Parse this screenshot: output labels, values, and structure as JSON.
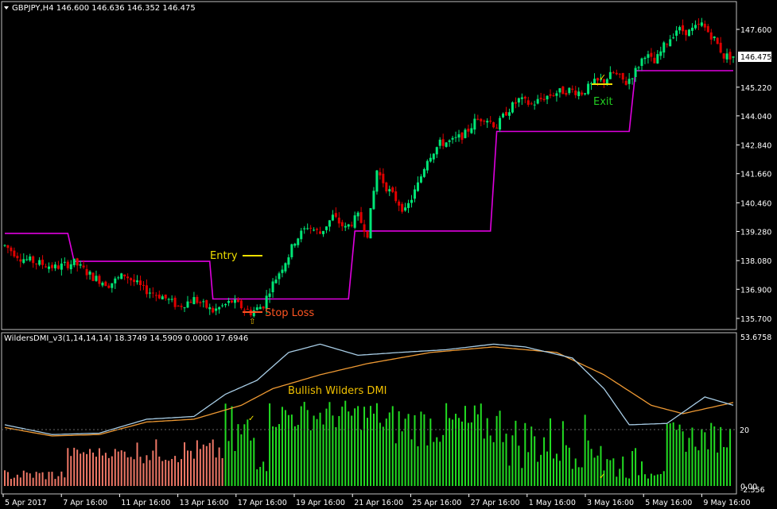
{
  "window": {
    "header_text": "GBPJPY,H4  146.600 146.636 146.352 146.475",
    "price_tag": "146.475"
  },
  "indicator": {
    "header_text": "WildersDMI_v3(1,14,14,14) 18.3749 14.5909 0.0000 17.6946",
    "level_label": "20"
  },
  "annotations": {
    "entry": "Entry",
    "exit": "Exit",
    "stop_loss": "Stop Loss",
    "bullish": "Bullish Wilders DMI"
  },
  "colors": {
    "background": "#000000",
    "grid_border": "#ffffff",
    "bull_candle": "#00e676",
    "bear_candle": "#e00000",
    "trail_line": "#e000e0",
    "hist_bull": "#22dd22",
    "hist_bear": "#ee7766",
    "dmi_plus": "#a8cde6",
    "dmi_minus": "#ee9933",
    "entry_text": "#f0e000",
    "exit_text": "#22cc22",
    "stop_text": "#ff5522",
    "bullish_text": "#f0c000"
  },
  "chart_data": [
    {
      "type": "candlestick",
      "symbol": "GBPJPY",
      "timeframe": "H4",
      "ylim": [
        135.7,
        148.3
      ],
      "y_ticks": [
        "147.600",
        "146.475",
        "145.220",
        "144.040",
        "142.840",
        "141.660",
        "140.460",
        "139.280",
        "138.080",
        "136.900",
        "135.700"
      ],
      "close_path": [
        [
          0,
          138.7
        ],
        [
          5,
          138.2
        ],
        [
          10,
          138.0
        ],
        [
          16,
          137.8
        ],
        [
          22,
          138.0
        ],
        [
          28,
          137.4
        ],
        [
          33,
          137.1
        ],
        [
          38,
          137.5
        ],
        [
          44,
          136.9
        ],
        [
          50,
          136.6
        ],
        [
          55,
          136.2
        ],
        [
          60,
          136.5
        ],
        [
          66,
          136.0
        ],
        [
          72,
          136.4
        ],
        [
          78,
          135.95
        ],
        [
          82,
          136.25
        ],
        [
          84,
          136.9
        ],
        [
          87,
          137.6
        ],
        [
          90,
          138.3
        ],
        [
          92,
          138.9
        ],
        [
          96,
          139.5
        ],
        [
          100,
          139.2
        ],
        [
          104,
          139.9
        ],
        [
          108,
          139.4
        ],
        [
          112,
          139.9
        ],
        [
          115,
          139.2
        ],
        [
          118,
          141.8
        ],
        [
          121,
          141.1
        ],
        [
          124,
          140.6
        ],
        [
          127,
          140.1
        ],
        [
          131,
          141.2
        ],
        [
          134,
          142.3
        ],
        [
          138,
          142.9
        ],
        [
          142,
          143.0
        ],
        [
          146,
          143.3
        ],
        [
          149,
          143.8
        ],
        [
          152,
          144.0
        ],
        [
          156,
          143.6
        ],
        [
          159,
          144.2
        ],
        [
          163,
          144.7
        ],
        [
          167,
          144.5
        ],
        [
          171,
          144.8
        ],
        [
          175,
          145.0
        ],
        [
          179,
          145.1
        ],
        [
          183,
          145.0
        ],
        [
          187,
          145.4
        ],
        [
          190,
          145.5
        ],
        [
          193,
          145.8
        ],
        [
          197,
          145.4
        ],
        [
          200,
          145.9
        ],
        [
          203,
          146.6
        ],
        [
          206,
          146.2
        ],
        [
          209,
          146.9
        ],
        [
          213,
          147.6
        ],
        [
          217,
          147.5
        ],
        [
          221,
          147.8
        ],
        [
          225,
          147.2
        ],
        [
          228,
          146.5
        ]
      ],
      "trailing_stop": [
        [
          0,
          139.2
        ],
        [
          20,
          139.2
        ],
        [
          22,
          138.05
        ],
        [
          65,
          138.05
        ],
        [
          66,
          136.5
        ],
        [
          109,
          136.5
        ],
        [
          111,
          139.3
        ],
        [
          154,
          139.3
        ],
        [
          156,
          143.4
        ],
        [
          198,
          143.4
        ],
        [
          200,
          145.9
        ],
        [
          231,
          145.9
        ]
      ],
      "x_labels": [
        "5 Apr 2017",
        "7 Apr 16:00",
        "11 Apr 16:00",
        "13 Apr 16:00",
        "17 Apr 16:00",
        "19 Apr 16:00",
        "21 Apr 16:00",
        "25 Apr 16:00",
        "27 Apr 16:00",
        "1 May 16:00",
        "3 May 16:00",
        "5 May 16:00",
        "9 May 16:00"
      ]
    },
    {
      "type": "bar",
      "name": "WildersDMI histogram",
      "ylim": [
        0,
        53.6758
      ],
      "y_ticks": [
        "53.6758",
        "20",
        "0.00",
        "-2.556"
      ],
      "level": 20,
      "bear_segments": [
        [
          0,
          20,
          2,
          6
        ],
        [
          20,
          40,
          10,
          14
        ],
        [
          40,
          70,
          8,
          17
        ]
      ],
      "bull_segments": [
        [
          70,
          84,
          4,
          30
        ],
        [
          84,
          120,
          20,
          31
        ],
        [
          120,
          160,
          14,
          30
        ],
        [
          160,
          190,
          6,
          26
        ],
        [
          190,
          210,
          2,
          14
        ],
        [
          210,
          231,
          12,
          23
        ]
      ]
    },
    {
      "type": "line",
      "name": "DMI lines",
      "plus_path": [
        [
          0,
          22
        ],
        [
          15,
          18.5
        ],
        [
          30,
          19
        ],
        [
          45,
          24
        ],
        [
          60,
          25
        ],
        [
          70,
          33
        ],
        [
          80,
          38
        ],
        [
          90,
          48
        ],
        [
          100,
          51
        ],
        [
          112,
          47
        ],
        [
          125,
          48
        ],
        [
          140,
          49
        ],
        [
          155,
          51
        ],
        [
          165,
          50
        ],
        [
          180,
          46
        ],
        [
          190,
          35
        ],
        [
          198,
          22
        ],
        [
          210,
          22.5
        ],
        [
          222,
          32
        ],
        [
          231,
          29
        ]
      ],
      "minus_path": [
        [
          0,
          21
        ],
        [
          15,
          18
        ],
        [
          30,
          18.5
        ],
        [
          45,
          23
        ],
        [
          60,
          24
        ],
        [
          75,
          29
        ],
        [
          85,
          35
        ],
        [
          100,
          40
        ],
        [
          115,
          44
        ],
        [
          135,
          48
        ],
        [
          155,
          50
        ],
        [
          175,
          48
        ],
        [
          190,
          40
        ],
        [
          205,
          29
        ],
        [
          215,
          26
        ],
        [
          231,
          30
        ]
      ]
    }
  ]
}
